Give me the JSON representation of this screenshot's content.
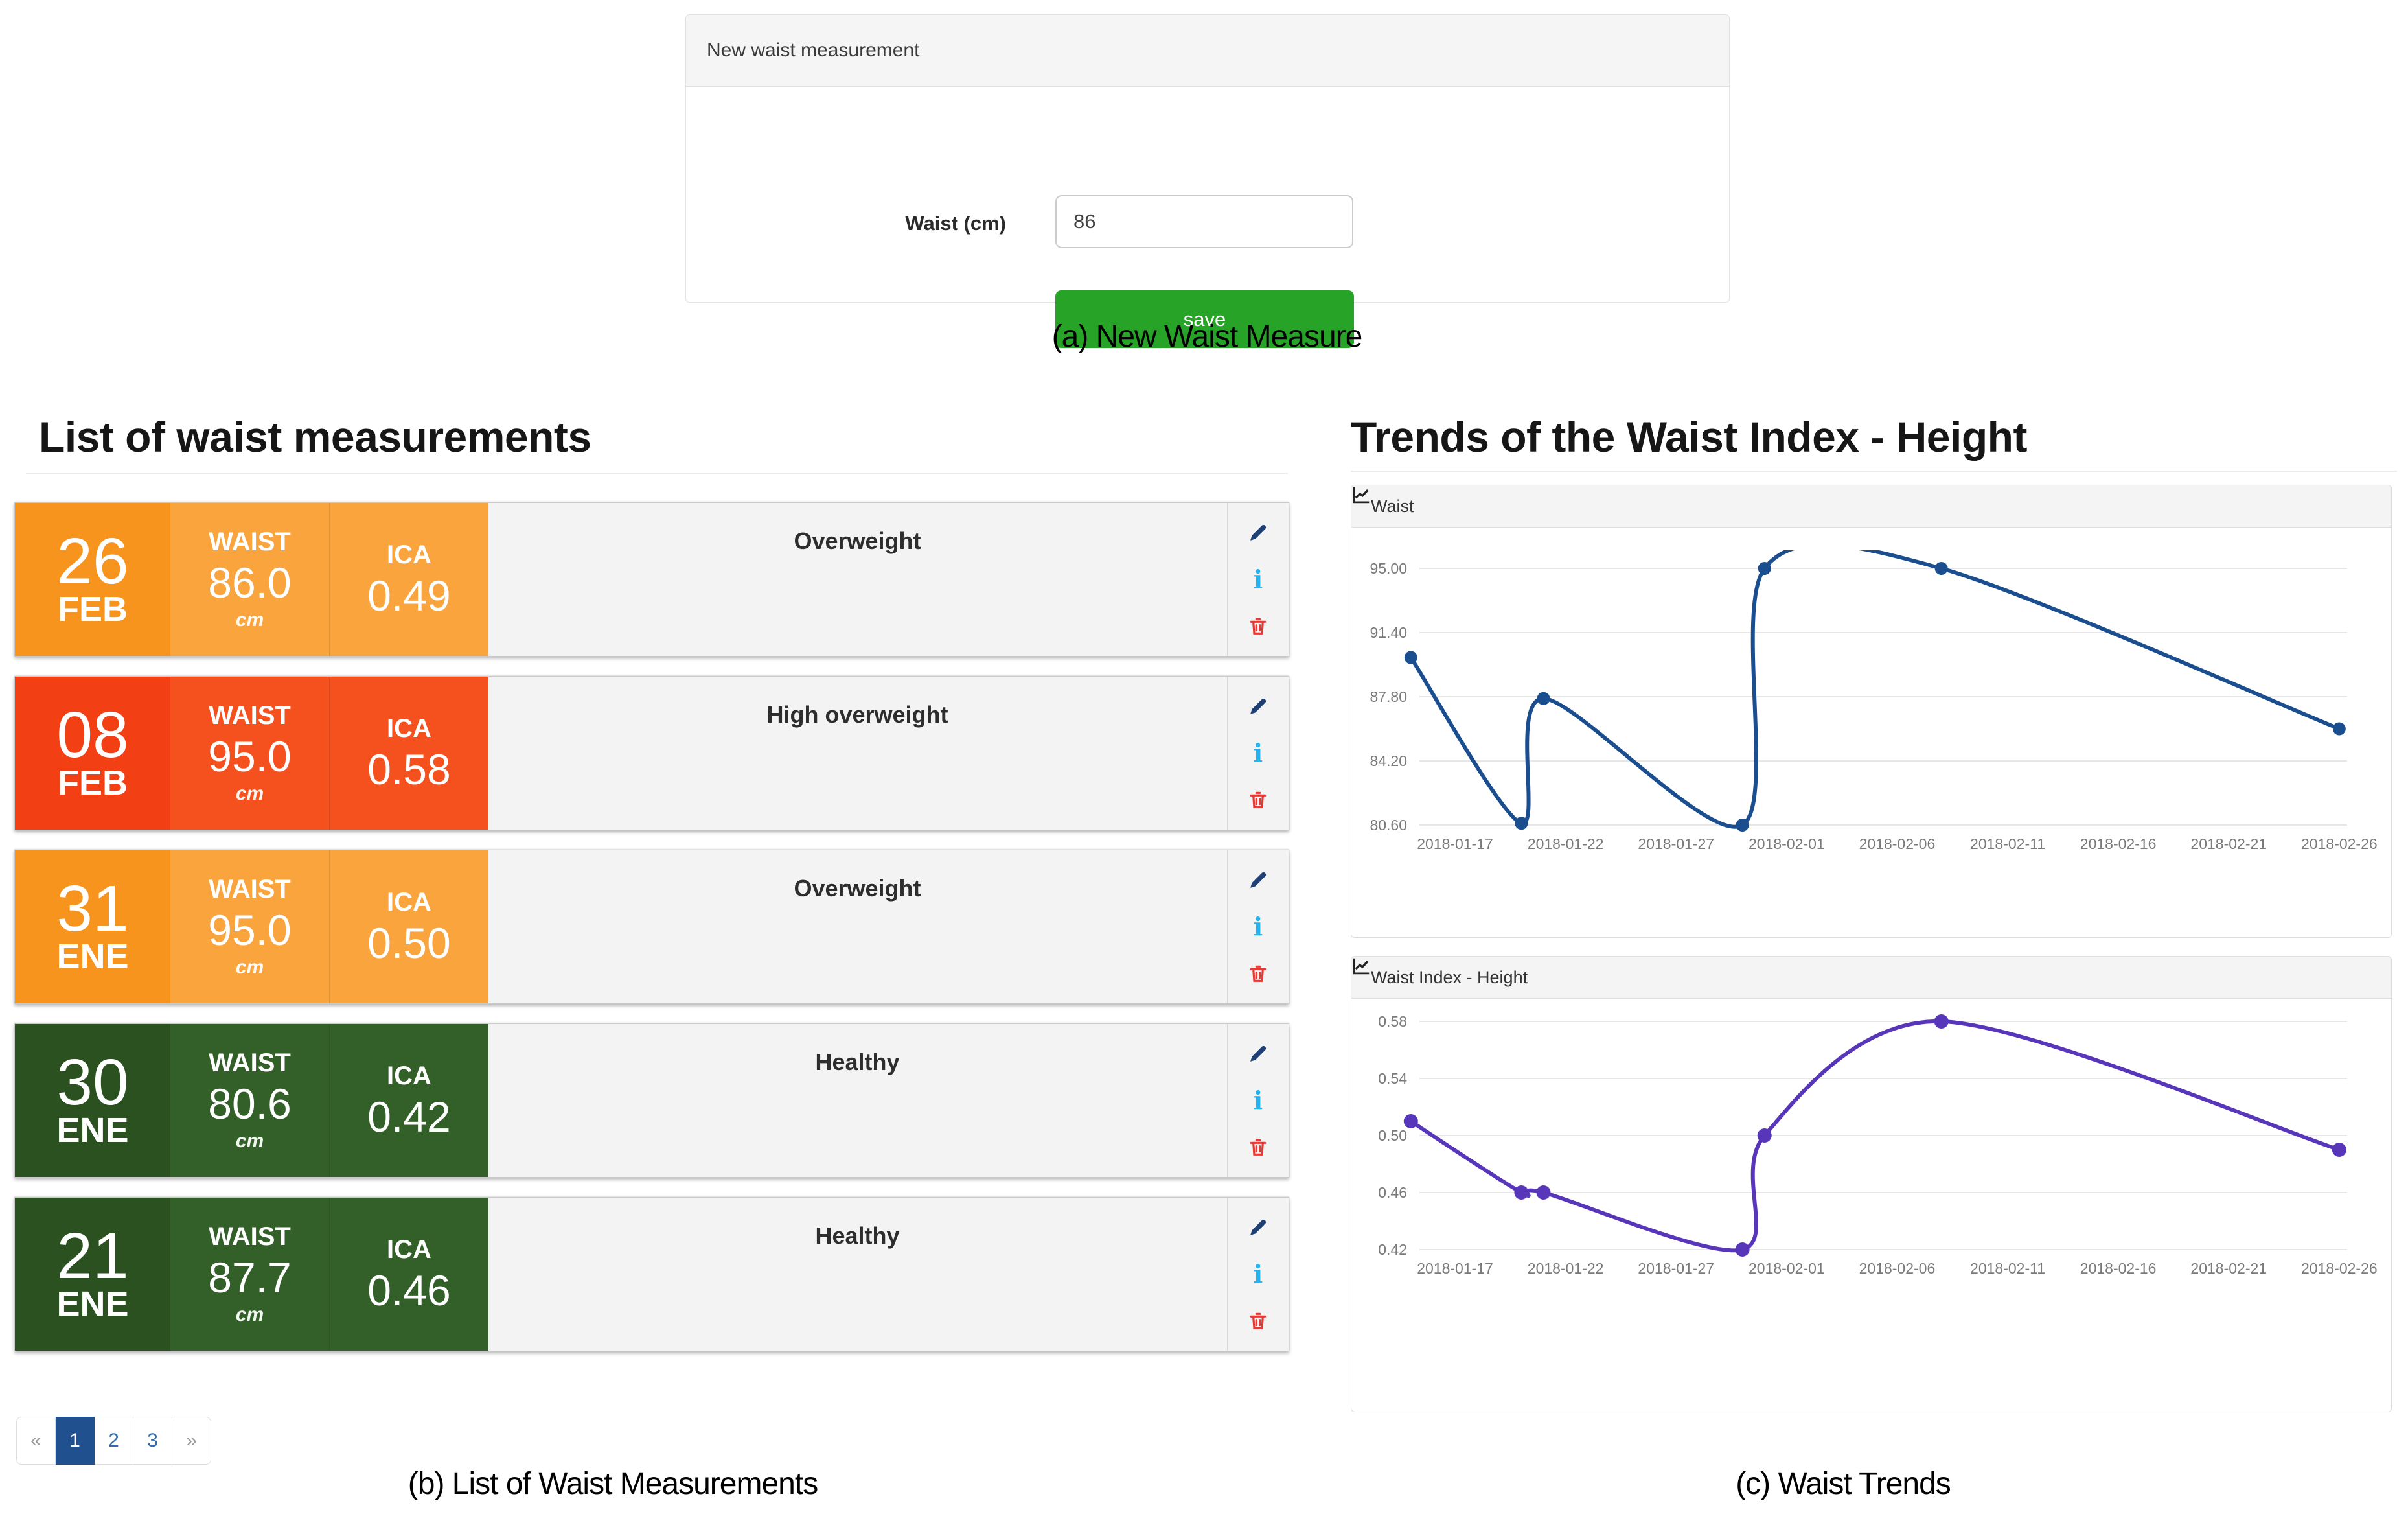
{
  "form": {
    "title": "New waist measurement",
    "waist_label": "Waist (cm)",
    "waist_value": "86",
    "save_label": "save",
    "caption": "(a) New Waist Measure"
  },
  "list": {
    "heading": "List of waist measurements",
    "column_labels": {
      "waist": "WAIST",
      "ica": "ICA",
      "unit": "cm"
    },
    "cards": [
      {
        "day": "26",
        "month": "FEB",
        "waist": "86.0",
        "ica": "0.49",
        "status": "Overweight",
        "date_color": "#F7941E",
        "cell_color": "#F9A43C"
      },
      {
        "day": "08",
        "month": "FEB",
        "waist": "95.0",
        "ica": "0.58",
        "status": "High overweight",
        "date_color": "#F23F14",
        "cell_color": "#F4511F"
      },
      {
        "day": "31",
        "month": "ENE",
        "waist": "95.0",
        "ica": "0.50",
        "status": "Overweight",
        "date_color": "#F7941E",
        "cell_color": "#F9A43C"
      },
      {
        "day": "30",
        "month": "ENE",
        "waist": "80.6",
        "ica": "0.42",
        "status": "Healthy",
        "date_color": "#2B5121",
        "cell_color": "#336029"
      },
      {
        "day": "21",
        "month": "ENE",
        "waist": "87.7",
        "ica": "0.46",
        "status": "Healthy",
        "date_color": "#2B5121",
        "cell_color": "#336029"
      }
    ],
    "pagination": [
      {
        "label": "«",
        "active": false
      },
      {
        "label": "1",
        "active": true
      },
      {
        "label": "2",
        "active": false
      },
      {
        "label": "3",
        "active": false
      },
      {
        "label": "»",
        "active": false
      }
    ],
    "caption": "(b) List of Waist Measurements"
  },
  "trends": {
    "heading": "Trends of the Waist Index - Height",
    "caption": "(c) Waist Trends"
  },
  "chart_data": [
    {
      "type": "line",
      "title": "Waist",
      "color": "#1B4E8F",
      "x": [
        "2018-01-15",
        "2018-01-20",
        "2018-01-21",
        "2018-01-30",
        "2018-01-31",
        "2018-02-08",
        "2018-02-26"
      ],
      "values": [
        90.0,
        80.7,
        87.7,
        80.6,
        95.0,
        95.0,
        86.0
      ],
      "x_ticks": [
        "2018-01-17",
        "2018-01-22",
        "2018-01-27",
        "2018-02-01",
        "2018-02-06",
        "2018-02-11",
        "2018-02-16",
        "2018-02-21",
        "2018-02-26"
      ],
      "y_ticks": [
        "95.00",
        "91.40",
        "87.80",
        "84.20",
        "80.60"
      ],
      "ylim": [
        80.6,
        95.0
      ],
      "grid": true,
      "legend": "none",
      "note": "smoothed line, peak clipped at top of plot area between 2018-01-31 and 2018-02-08"
    },
    {
      "type": "line",
      "title": "Waist Index - Height",
      "color": "#5736B9",
      "x": [
        "2018-01-15",
        "2018-01-20",
        "2018-01-21",
        "2018-01-30",
        "2018-01-31",
        "2018-02-08",
        "2018-02-26"
      ],
      "values": [
        0.51,
        0.46,
        0.46,
        0.42,
        0.5,
        0.58,
        0.49
      ],
      "x_ticks": [
        "2018-01-17",
        "2018-01-22",
        "2018-01-27",
        "2018-02-01",
        "2018-02-06",
        "2018-02-11",
        "2018-02-16",
        "2018-02-21",
        "2018-02-26"
      ],
      "y_ticks": [
        "0.58",
        "0.54",
        "0.50",
        "0.46",
        "0.42"
      ],
      "ylim": [
        0.42,
        0.58
      ],
      "grid": true,
      "legend": "none"
    }
  ],
  "icons": {
    "edit": "pencil-icon",
    "details": "info-icon",
    "delete": "trash-icon",
    "panel_header": "line-chart-icon"
  },
  "colors": {
    "save_button": "#27A327",
    "pagination_active": "#20508E",
    "status_overweight": "#F7941E",
    "status_high_overweight": "#F23F14",
    "status_healthy": "#2B5121"
  }
}
